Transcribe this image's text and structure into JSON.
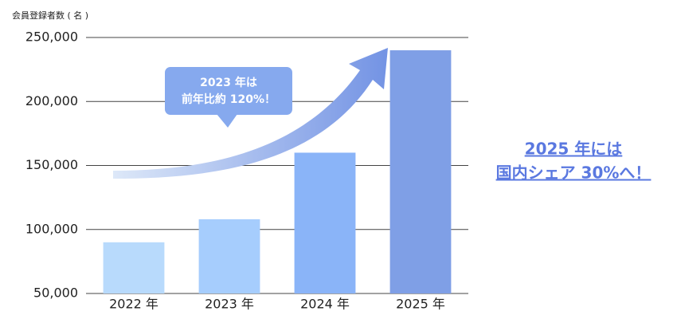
{
  "chart_data": {
    "type": "bar",
    "y_axis_label": "会員登録者数 ( 名 )",
    "categories": [
      "2022 年",
      "2023 年",
      "2024 年",
      "2025 年"
    ],
    "values": [
      90000,
      108000,
      160000,
      240000
    ],
    "colors": [
      "#b8dafc",
      "#a6cdfd",
      "#8ab4f8",
      "#7f9fe6"
    ],
    "ylim": [
      50000,
      250000
    ],
    "yticks": [
      {
        "value": 50000,
        "label": "50,000"
      },
      {
        "value": 100000,
        "label": "100,000"
      },
      {
        "value": 150000,
        "label": "150,000"
      },
      {
        "value": 200000,
        "label": "200,000"
      },
      {
        "value": 250000,
        "label": "250,000"
      }
    ],
    "grid": true,
    "annotations": [
      {
        "lines": [
          "2023 年は",
          "前年比約 120%！"
        ]
      },
      {
        "lines": [
          "2025 年には",
          "国内シェア 30%へ！"
        ]
      }
    ]
  }
}
